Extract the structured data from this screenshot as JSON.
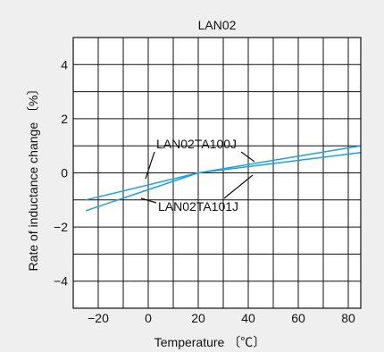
{
  "chart_data": {
    "type": "line",
    "title": "LAN02",
    "xlabel": "Temperature 〔℃〕",
    "ylabel": "Rate of inductance change 〔%〕",
    "xlim": [
      -30,
      85
    ],
    "ylim": [
      -5,
      5
    ],
    "x_ticks": [
      -20,
      0,
      20,
      40,
      60,
      80
    ],
    "x_tick_labels": [
      "−20",
      "0",
      "20",
      "40",
      "60",
      "80"
    ],
    "y_ticks": [
      -4,
      -2,
      0,
      2,
      4
    ],
    "y_tick_labels": [
      "−4",
      "−2",
      "0",
      "2",
      "4"
    ],
    "grid": true,
    "line_color": "#1ba1e2",
    "series": [
      {
        "name": "LAN02TA100J",
        "x": [
          -25,
          20,
          85
        ],
        "y": [
          -1.0,
          0.0,
          0.75
        ]
      },
      {
        "name": "LAN02TA101J",
        "x": [
          -25,
          20,
          85
        ],
        "y": [
          -1.4,
          0.0,
          1.0
        ]
      }
    ]
  }
}
